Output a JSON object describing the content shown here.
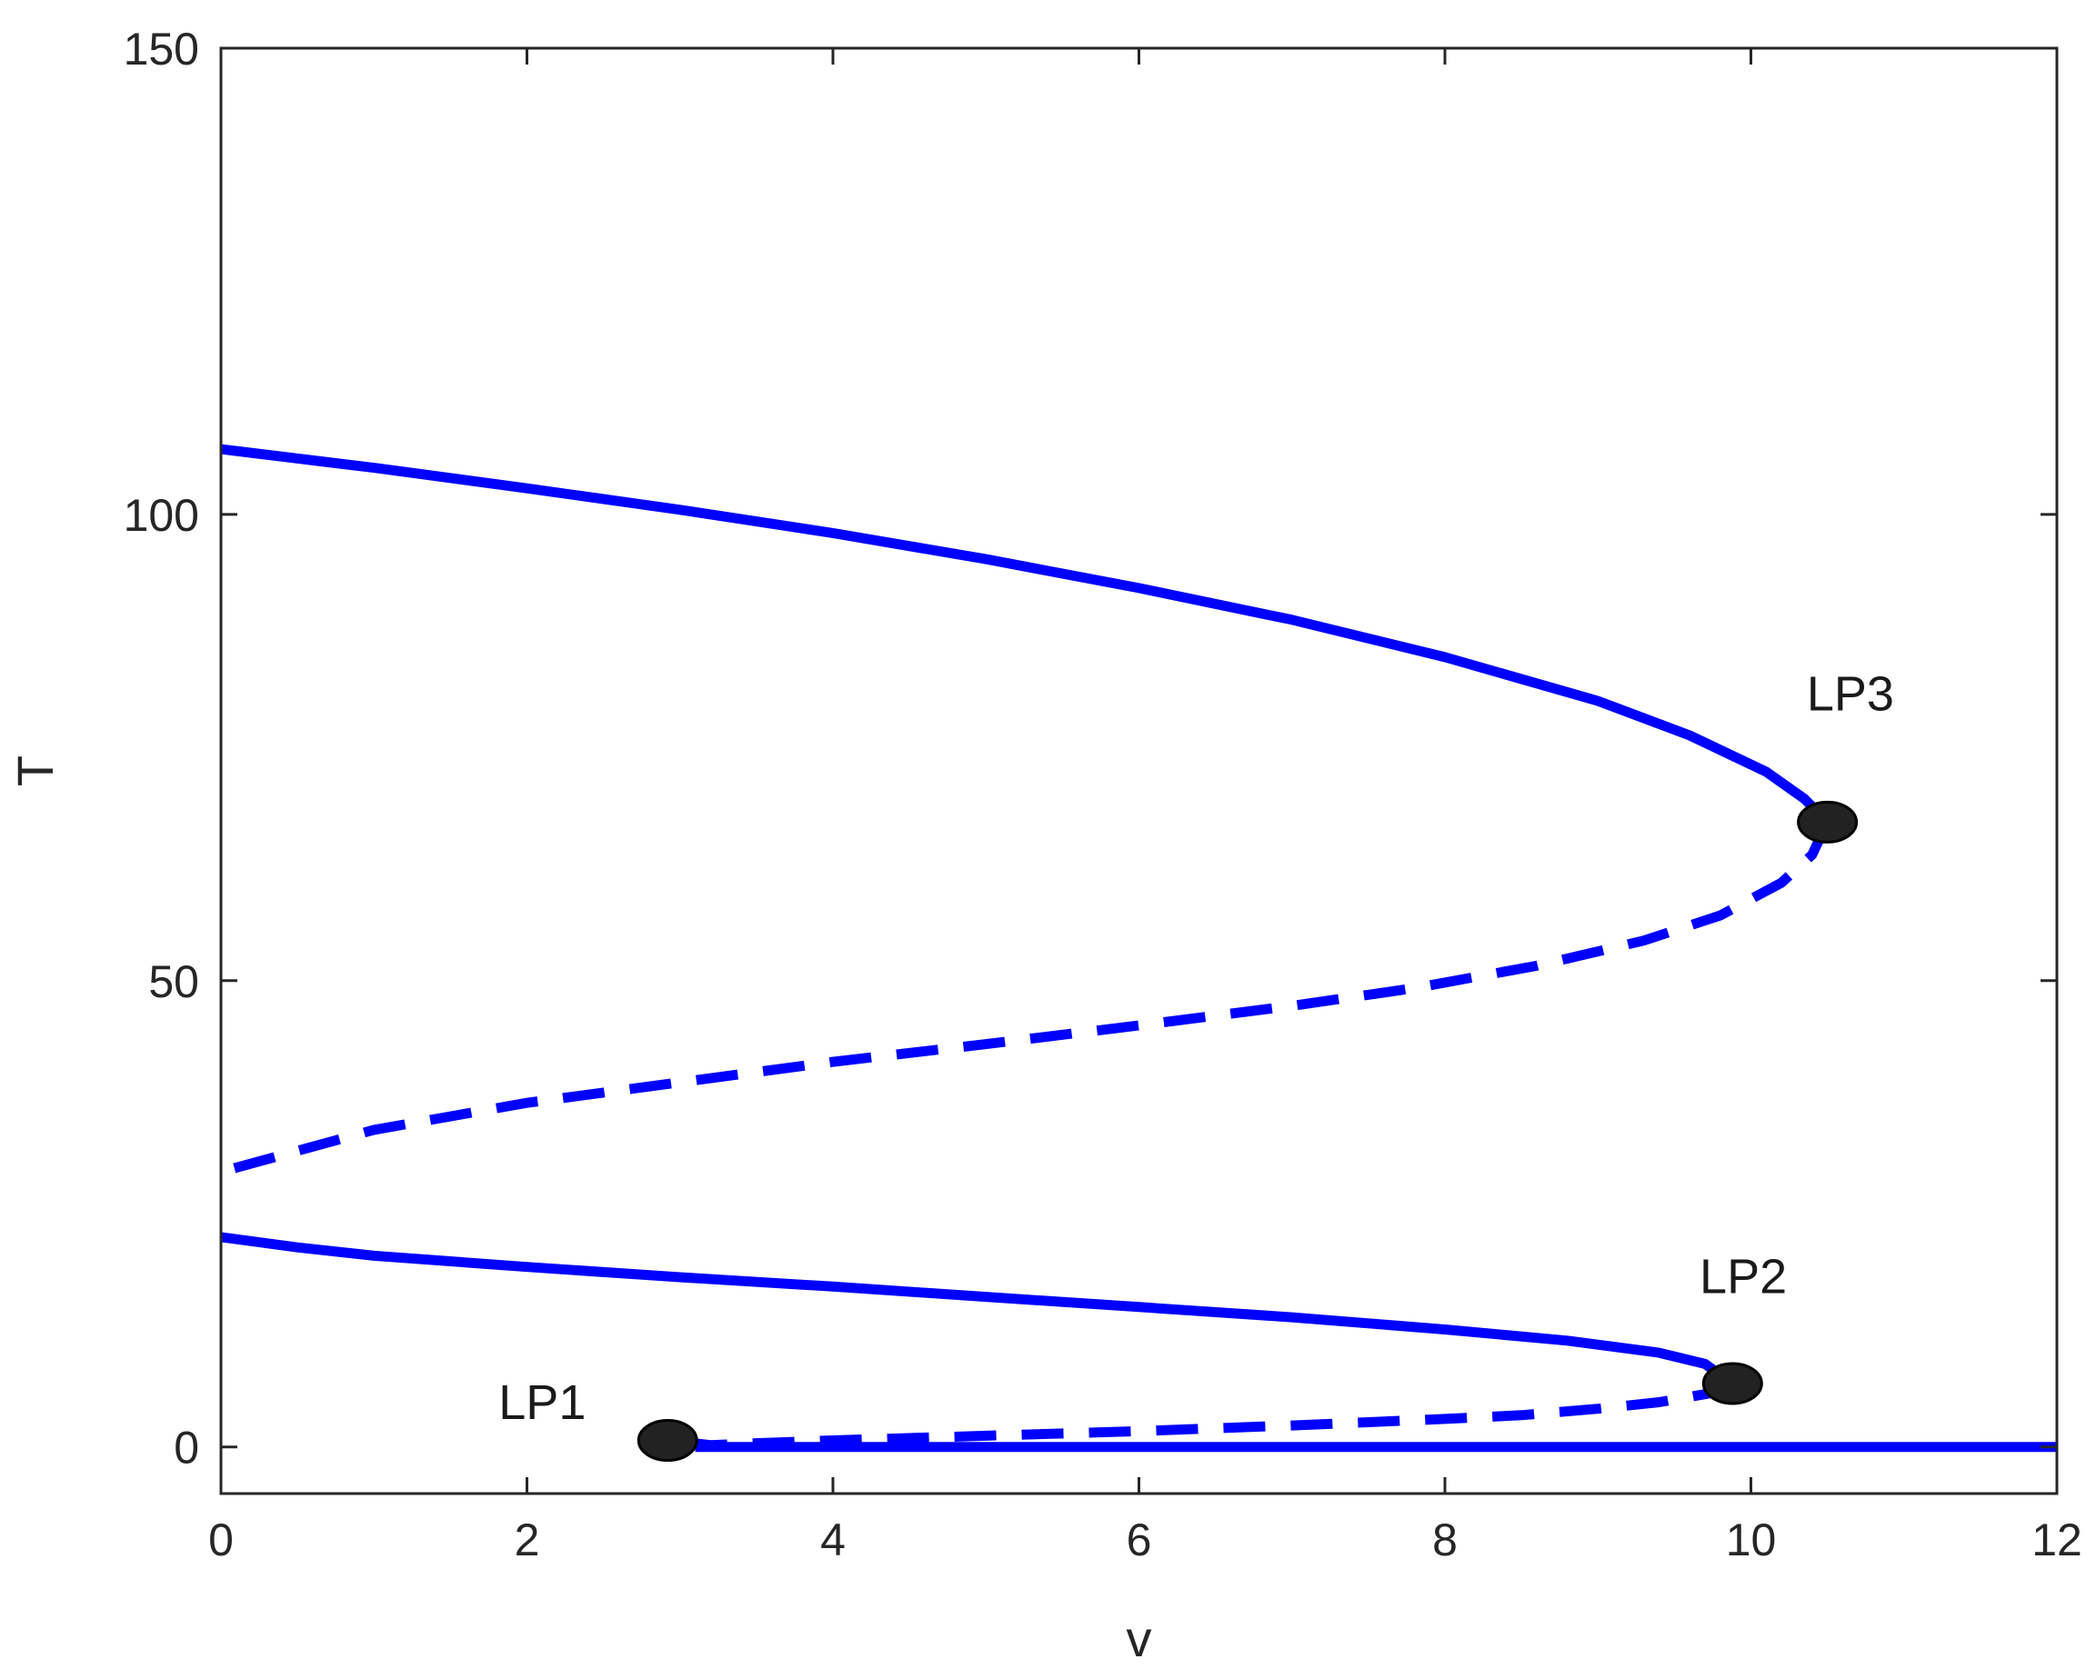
{
  "chart_data": {
    "type": "line",
    "title": "",
    "xlabel": "v",
    "ylabel": "T",
    "xlim": [
      0,
      12
    ],
    "ylim": [
      -5,
      150
    ],
    "xticks": [
      0,
      2,
      4,
      6,
      8,
      10,
      12
    ],
    "yticks": [
      0,
      50,
      100,
      150
    ],
    "x_tick_labels": [
      "0",
      "2",
      "4",
      "6",
      "8",
      "10",
      "12"
    ],
    "y_tick_labels": [
      "0",
      "50",
      "100",
      150
    ],
    "grid": false,
    "legend": "none",
    "line_color": "#0000ff",
    "marker_color": "#222222",
    "series": [
      {
        "style": "solid",
        "x": [
          0,
          1,
          2,
          3,
          4,
          5,
          6,
          7,
          8,
          9,
          9.6,
          10.1,
          10.35,
          10.5
        ],
        "y": [
          107,
          105,
          102.8,
          100.5,
          98,
          95.2,
          92.1,
          88.7,
          84.7,
          80,
          76.3,
          72.4,
          69.5,
          67
        ]
      },
      {
        "style": "dashed",
        "x": [
          10.5,
          10.4,
          10.2,
          9.8,
          9.3,
          8.6,
          7.8,
          7,
          6,
          5,
          4,
          3,
          2,
          1,
          0
        ],
        "y": [
          67,
          63.5,
          60.5,
          57,
          54.3,
          51.6,
          49.2,
          47.3,
          45.2,
          43.2,
          41.3,
          39.1,
          36.9,
          34,
          29.5
        ]
      },
      {
        "style": "solid",
        "x": [
          0,
          0.5,
          1,
          2,
          3,
          4,
          5,
          6,
          7,
          8,
          8.8,
          9.4,
          9.7,
          9.88
        ],
        "y": [
          22.5,
          21.4,
          20.5,
          19.3,
          18.2,
          17.2,
          16.1,
          15,
          13.9,
          12.6,
          11.4,
          10.1,
          8.9,
          6.8
        ]
      },
      {
        "style": "dashed",
        "x": [
          9.88,
          9.75,
          9.4,
          9,
          8.5,
          8,
          7,
          6,
          5,
          4,
          3.5,
          3.2,
          2.92
        ],
        "y": [
          6.8,
          5.8,
          4.8,
          4.1,
          3.4,
          3,
          2.3,
          1.7,
          1.2,
          0.7,
          0.4,
          0.2,
          0.7
        ]
      },
      {
        "style": "solid",
        "x": [
          3.1,
          12
        ],
        "y": [
          0,
          0
        ]
      }
    ],
    "points": [
      {
        "label": "LP1",
        "x": 2.92,
        "y": 0.7,
        "label_x": 2.1,
        "label_y": 3
      },
      {
        "label": "LP2",
        "x": 9.88,
        "y": 6.8,
        "label_x": 9.95,
        "label_y": 16.5
      },
      {
        "label": "LP3",
        "x": 10.5,
        "y": 67,
        "label_x": 10.65,
        "label_y": 79
      }
    ]
  }
}
